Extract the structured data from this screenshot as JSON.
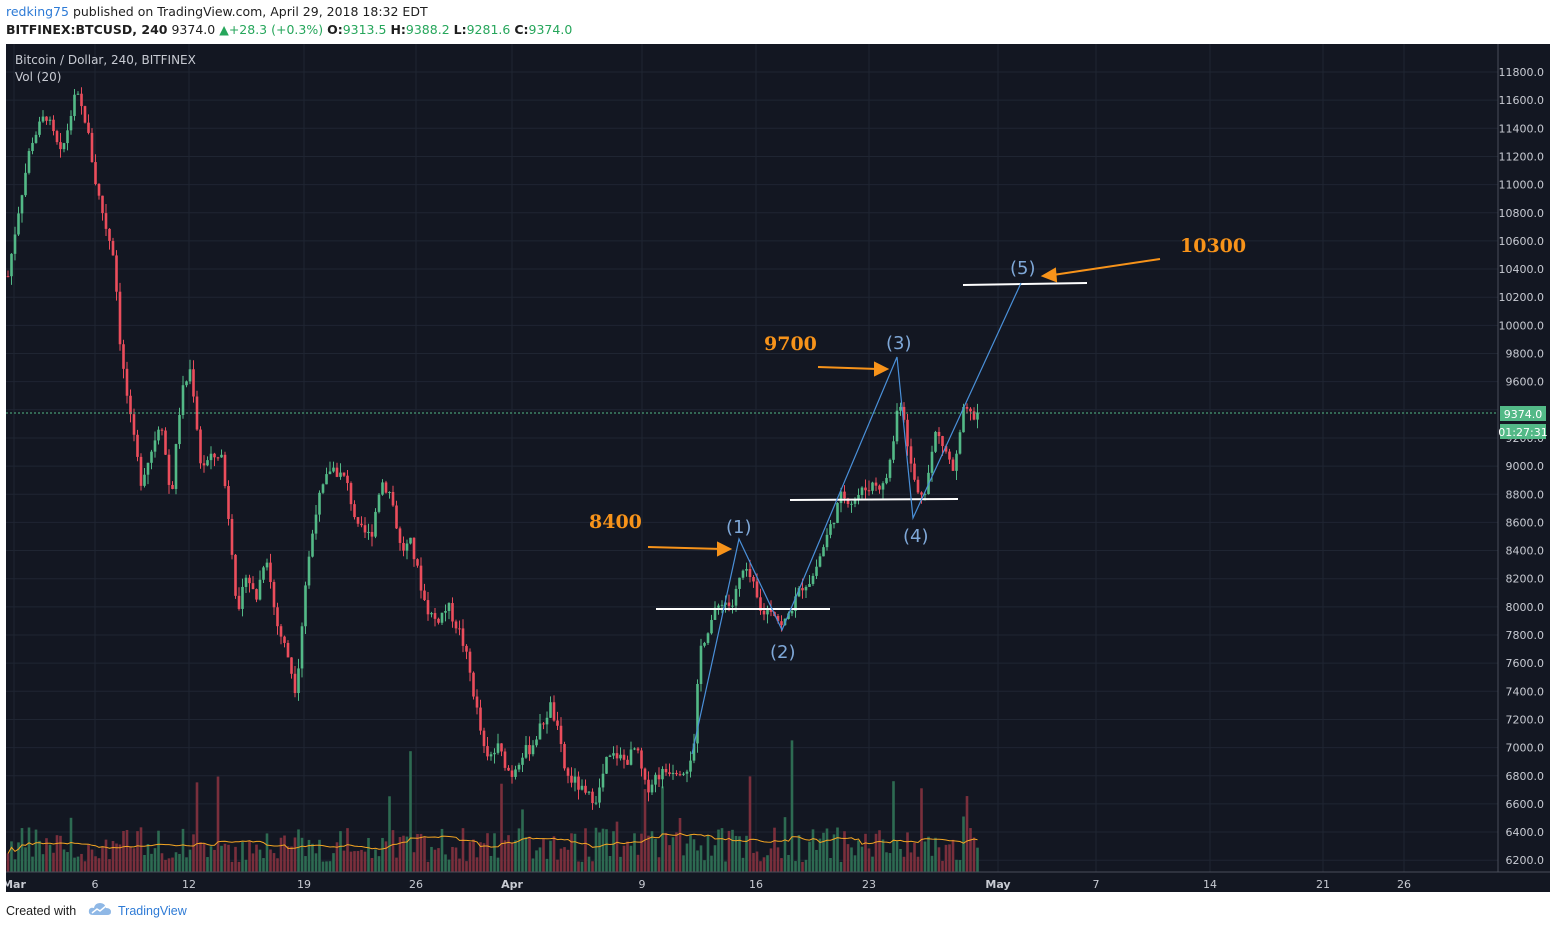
{
  "header": {
    "author": "redking75",
    "published_text": " published on TradingView.com, April 29, 2018 18:32 EDT",
    "symbol": "BITFINEX:BTCUSD, 240",
    "last": "9374.0",
    "change": "▲+28.3 (+0.3%)",
    "open_label": "O:",
    "open": "9313.5",
    "high_label": "H:",
    "high": "9388.2",
    "low_label": "L:",
    "low": "9281.6",
    "close_label": "C:",
    "close": "9374.0"
  },
  "chart": {
    "title": "Bitcoin / Dollar, 240, BITFINEX",
    "volume_label": "Vol (20)",
    "price_badge": "9374.0",
    "countdown_badge": "01:27:31",
    "y_ticks": [
      "11800.0",
      "11600.0",
      "11400.0",
      "11200.0",
      "11000.0",
      "10800.0",
      "10600.0",
      "10400.0",
      "10200.0",
      "10000.0",
      "9800.0",
      "9600.0",
      "9400.0",
      "9200.0",
      "9000.0",
      "8800.0",
      "8600.0",
      "8400.0",
      "8200.0",
      "8000.0",
      "7800.0",
      "7600.0",
      "7400.0",
      "7200.0",
      "7000.0",
      "6800.0",
      "6600.0",
      "6400.0",
      "6200.0"
    ],
    "x_ticks": [
      {
        "label": "Mar",
        "bold": true
      },
      {
        "label": "6",
        "bold": false
      },
      {
        "label": "12",
        "bold": false
      },
      {
        "label": "19",
        "bold": false
      },
      {
        "label": "26",
        "bold": false
      },
      {
        "label": "Apr",
        "bold": true
      },
      {
        "label": "9",
        "bold": false
      },
      {
        "label": "16",
        "bold": false
      },
      {
        "label": "23",
        "bold": false
      },
      {
        "label": "May",
        "bold": true
      },
      {
        "label": "7",
        "bold": false
      },
      {
        "label": "14",
        "bold": false
      },
      {
        "label": "21",
        "bold": false
      },
      {
        "label": "26",
        "bold": false
      }
    ],
    "colors": {
      "background": "#131722",
      "up": "#53b987",
      "down": "#eb4d5c",
      "annotation": "#f7931a",
      "wave": "#4a90d9",
      "label_text": "#7fa8d8"
    }
  },
  "annotations": {
    "target_1": "8400",
    "target_2": "9700",
    "target_3": "10300",
    "wave_1": "(1)",
    "wave_2": "(2)",
    "wave_3": "(3)",
    "wave_4": "(4)",
    "wave_5": "(5)"
  },
  "footer": {
    "created_with": "Created with",
    "brand": "TradingView"
  }
}
